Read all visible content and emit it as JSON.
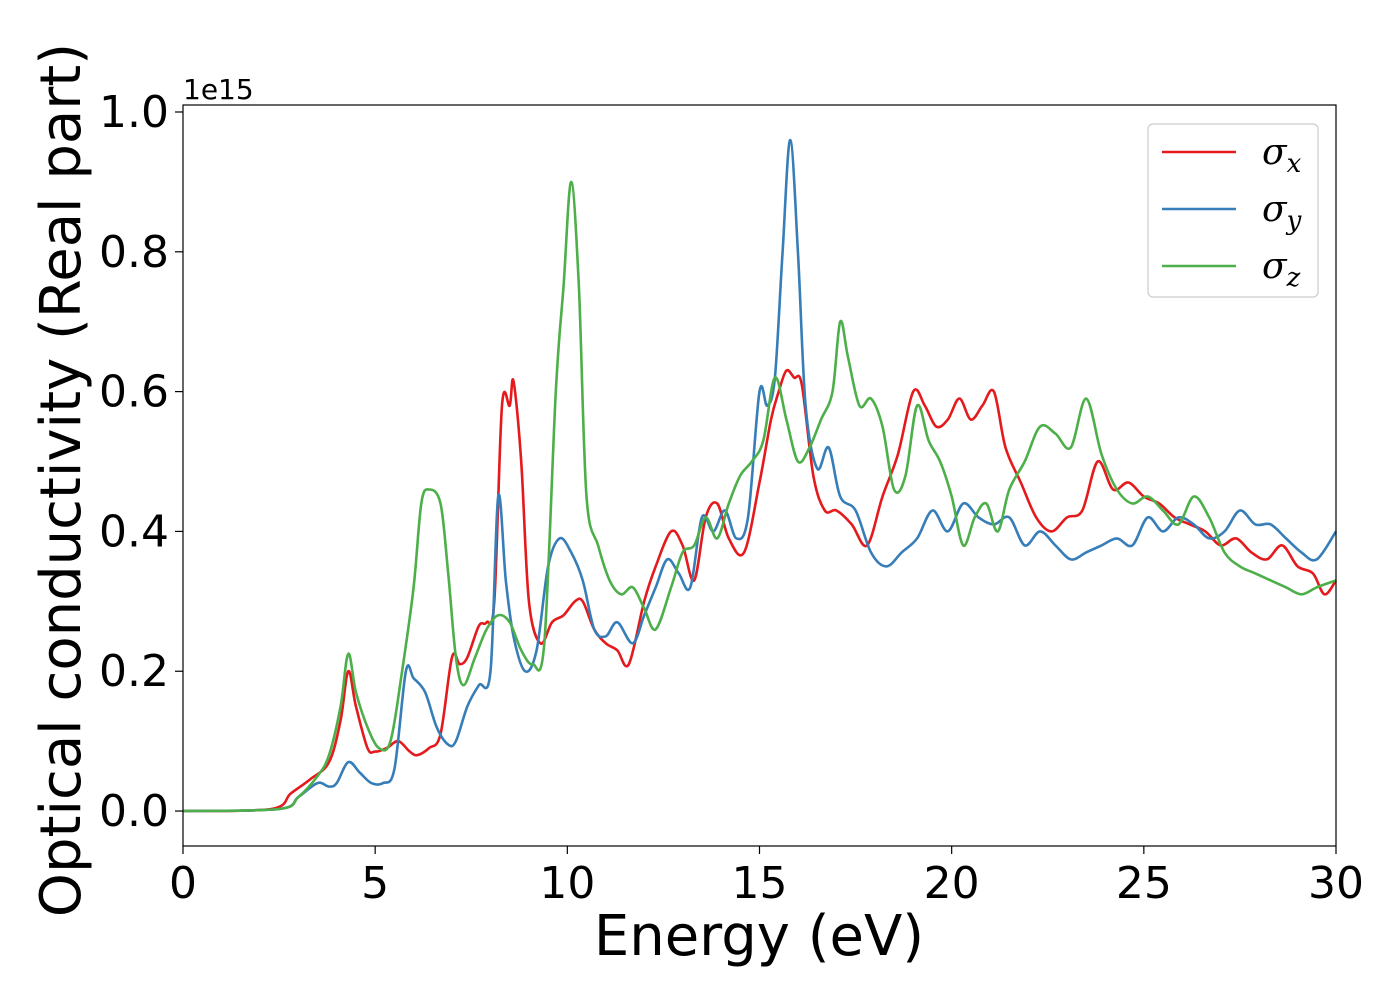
{
  "chart_data": {
    "type": "line",
    "xlabel": "Energy (eV)",
    "ylabel": "Optical conductivity (Real part)",
    "y_offset_label": "1e15",
    "xlim": [
      0,
      30
    ],
    "ylim": [
      -0.05,
      1.01
    ],
    "xticks": [
      0,
      5,
      10,
      15,
      20,
      25,
      30
    ],
    "xtick_labels": [
      "0",
      "5",
      "10",
      "15",
      "20",
      "25",
      "30"
    ],
    "yticks": [
      0.0,
      0.2,
      0.4,
      0.6,
      0.8,
      1.0
    ],
    "ytick_labels": [
      "0.0",
      "0.2",
      "0.4",
      "0.6",
      "0.8",
      "1.0"
    ],
    "grid": false,
    "legend_position": "top-right",
    "series": [
      {
        "name": "σx",
        "label_main": "σ",
        "label_sub": "x",
        "color": "#e41a1c",
        "x": [
          0,
          2.3,
          2.8,
          3.3,
          3.8,
          4.1,
          4.3,
          4.5,
          4.8,
          5.0,
          5.3,
          5.6,
          5.9,
          6.1,
          6.4,
          6.7,
          7.0,
          7.2,
          7.4,
          7.7,
          7.9,
          8.1,
          8.3,
          8.5,
          8.6,
          8.8,
          9.0,
          9.3,
          9.6,
          9.9,
          10.2,
          10.4,
          10.7,
          11.0,
          11.3,
          11.6,
          12.0,
          12.3,
          12.7,
          13.0,
          13.3,
          13.6,
          13.9,
          14.2,
          14.6,
          15.0,
          15.3,
          15.5,
          15.7,
          15.9,
          16.1,
          16.4,
          16.7,
          17.0,
          17.4,
          17.8,
          18.2,
          18.6,
          19.0,
          19.3,
          19.6,
          19.9,
          20.2,
          20.5,
          20.8,
          21.1,
          21.4,
          21.8,
          22.2,
          22.6,
          23.0,
          23.4,
          23.8,
          24.2,
          24.6,
          25.0,
          25.4,
          25.8,
          26.2,
          26.6,
          27.0,
          27.4,
          27.8,
          28.2,
          28.6,
          29.0,
          29.4,
          29.7,
          30.0
        ],
        "y": [
          0,
          0.003,
          0.025,
          0.045,
          0.07,
          0.13,
          0.2,
          0.15,
          0.09,
          0.085,
          0.09,
          0.1,
          0.085,
          0.08,
          0.09,
          0.11,
          0.22,
          0.21,
          0.22,
          0.265,
          0.27,
          0.3,
          0.58,
          0.58,
          0.615,
          0.5,
          0.3,
          0.24,
          0.27,
          0.28,
          0.3,
          0.3,
          0.26,
          0.24,
          0.23,
          0.21,
          0.3,
          0.35,
          0.4,
          0.38,
          0.33,
          0.42,
          0.44,
          0.39,
          0.37,
          0.47,
          0.56,
          0.6,
          0.63,
          0.62,
          0.61,
          0.48,
          0.43,
          0.43,
          0.41,
          0.38,
          0.45,
          0.51,
          0.6,
          0.58,
          0.55,
          0.56,
          0.59,
          0.56,
          0.58,
          0.6,
          0.52,
          0.47,
          0.42,
          0.4,
          0.42,
          0.43,
          0.5,
          0.46,
          0.47,
          0.45,
          0.44,
          0.42,
          0.41,
          0.4,
          0.38,
          0.39,
          0.37,
          0.36,
          0.38,
          0.35,
          0.34,
          0.31,
          0.33
        ]
      },
      {
        "name": "σy",
        "label_main": "σ",
        "label_sub": "y",
        "color": "#377eb8",
        "x": [
          0,
          2.5,
          3.0,
          3.5,
          3.8,
          4.0,
          4.3,
          4.6,
          4.9,
          5.2,
          5.5,
          5.8,
          6.0,
          6.3,
          6.6,
          6.9,
          7.1,
          7.4,
          7.7,
          8.0,
          8.2,
          8.4,
          8.6,
          8.9,
          9.2,
          9.5,
          9.8,
          10.1,
          10.4,
          10.7,
          11.0,
          11.3,
          11.7,
          12.0,
          12.3,
          12.6,
          12.9,
          13.2,
          13.5,
          13.8,
          14.1,
          14.4,
          14.7,
          15.0,
          15.2,
          15.4,
          15.6,
          15.8,
          16.0,
          16.2,
          16.5,
          16.8,
          17.1,
          17.5,
          17.9,
          18.3,
          18.7,
          19.1,
          19.5,
          19.9,
          20.3,
          20.7,
          21.1,
          21.5,
          21.9,
          22.3,
          22.7,
          23.1,
          23.5,
          23.9,
          24.3,
          24.7,
          25.1,
          25.5,
          25.9,
          26.3,
          26.7,
          27.1,
          27.5,
          27.9,
          28.3,
          28.7,
          29.1,
          29.5,
          30.0
        ],
        "y": [
          0,
          0.003,
          0.02,
          0.04,
          0.035,
          0.04,
          0.07,
          0.055,
          0.04,
          0.04,
          0.06,
          0.2,
          0.19,
          0.17,
          0.12,
          0.095,
          0.1,
          0.15,
          0.18,
          0.2,
          0.45,
          0.33,
          0.25,
          0.2,
          0.23,
          0.35,
          0.39,
          0.37,
          0.33,
          0.26,
          0.25,
          0.27,
          0.24,
          0.28,
          0.32,
          0.36,
          0.34,
          0.32,
          0.42,
          0.4,
          0.43,
          0.39,
          0.42,
          0.6,
          0.58,
          0.62,
          0.8,
          0.96,
          0.8,
          0.58,
          0.49,
          0.52,
          0.45,
          0.43,
          0.37,
          0.35,
          0.37,
          0.39,
          0.43,
          0.4,
          0.44,
          0.42,
          0.41,
          0.42,
          0.38,
          0.4,
          0.38,
          0.36,
          0.37,
          0.38,
          0.39,
          0.38,
          0.42,
          0.4,
          0.42,
          0.41,
          0.39,
          0.4,
          0.43,
          0.41,
          0.41,
          0.39,
          0.37,
          0.36,
          0.4
        ]
      },
      {
        "name": "σz",
        "label_main": "σ",
        "label_sub": "z",
        "color": "#4daf4a",
        "x": [
          0,
          2.5,
          3.0,
          3.5,
          3.8,
          4.1,
          4.3,
          4.5,
          4.8,
          5.1,
          5.4,
          5.7,
          6.0,
          6.2,
          6.4,
          6.7,
          6.9,
          7.1,
          7.3,
          7.6,
          7.9,
          8.2,
          8.5,
          8.8,
          9.1,
          9.4,
          9.7,
          9.9,
          10.1,
          10.3,
          10.5,
          10.8,
          11.1,
          11.4,
          11.7,
          12.0,
          12.3,
          12.7,
          13.0,
          13.3,
          13.6,
          13.9,
          14.2,
          14.5,
          14.8,
          15.1,
          15.4,
          15.7,
          16.0,
          16.3,
          16.6,
          16.9,
          17.1,
          17.3,
          17.6,
          17.9,
          18.2,
          18.5,
          18.8,
          19.1,
          19.4,
          19.7,
          20.0,
          20.3,
          20.6,
          20.9,
          21.2,
          21.5,
          21.9,
          22.3,
          22.7,
          23.1,
          23.5,
          23.9,
          24.3,
          24.7,
          25.1,
          25.5,
          25.9,
          26.3,
          26.7,
          27.1,
          27.5,
          27.9,
          28.3,
          28.7,
          29.1,
          29.5,
          30.0
        ],
        "y": [
          0,
          0.003,
          0.02,
          0.05,
          0.08,
          0.15,
          0.225,
          0.17,
          0.12,
          0.09,
          0.1,
          0.2,
          0.32,
          0.44,
          0.46,
          0.44,
          0.34,
          0.22,
          0.18,
          0.22,
          0.26,
          0.28,
          0.27,
          0.23,
          0.21,
          0.24,
          0.6,
          0.75,
          0.9,
          0.75,
          0.45,
          0.38,
          0.33,
          0.31,
          0.32,
          0.29,
          0.26,
          0.32,
          0.37,
          0.38,
          0.42,
          0.39,
          0.44,
          0.48,
          0.5,
          0.53,
          0.62,
          0.56,
          0.5,
          0.52,
          0.56,
          0.6,
          0.7,
          0.65,
          0.58,
          0.59,
          0.55,
          0.46,
          0.48,
          0.58,
          0.53,
          0.5,
          0.45,
          0.38,
          0.42,
          0.44,
          0.4,
          0.46,
          0.5,
          0.55,
          0.54,
          0.52,
          0.59,
          0.51,
          0.46,
          0.44,
          0.45,
          0.43,
          0.41,
          0.45,
          0.42,
          0.37,
          0.35,
          0.34,
          0.33,
          0.32,
          0.31,
          0.32,
          0.33
        ]
      }
    ]
  }
}
